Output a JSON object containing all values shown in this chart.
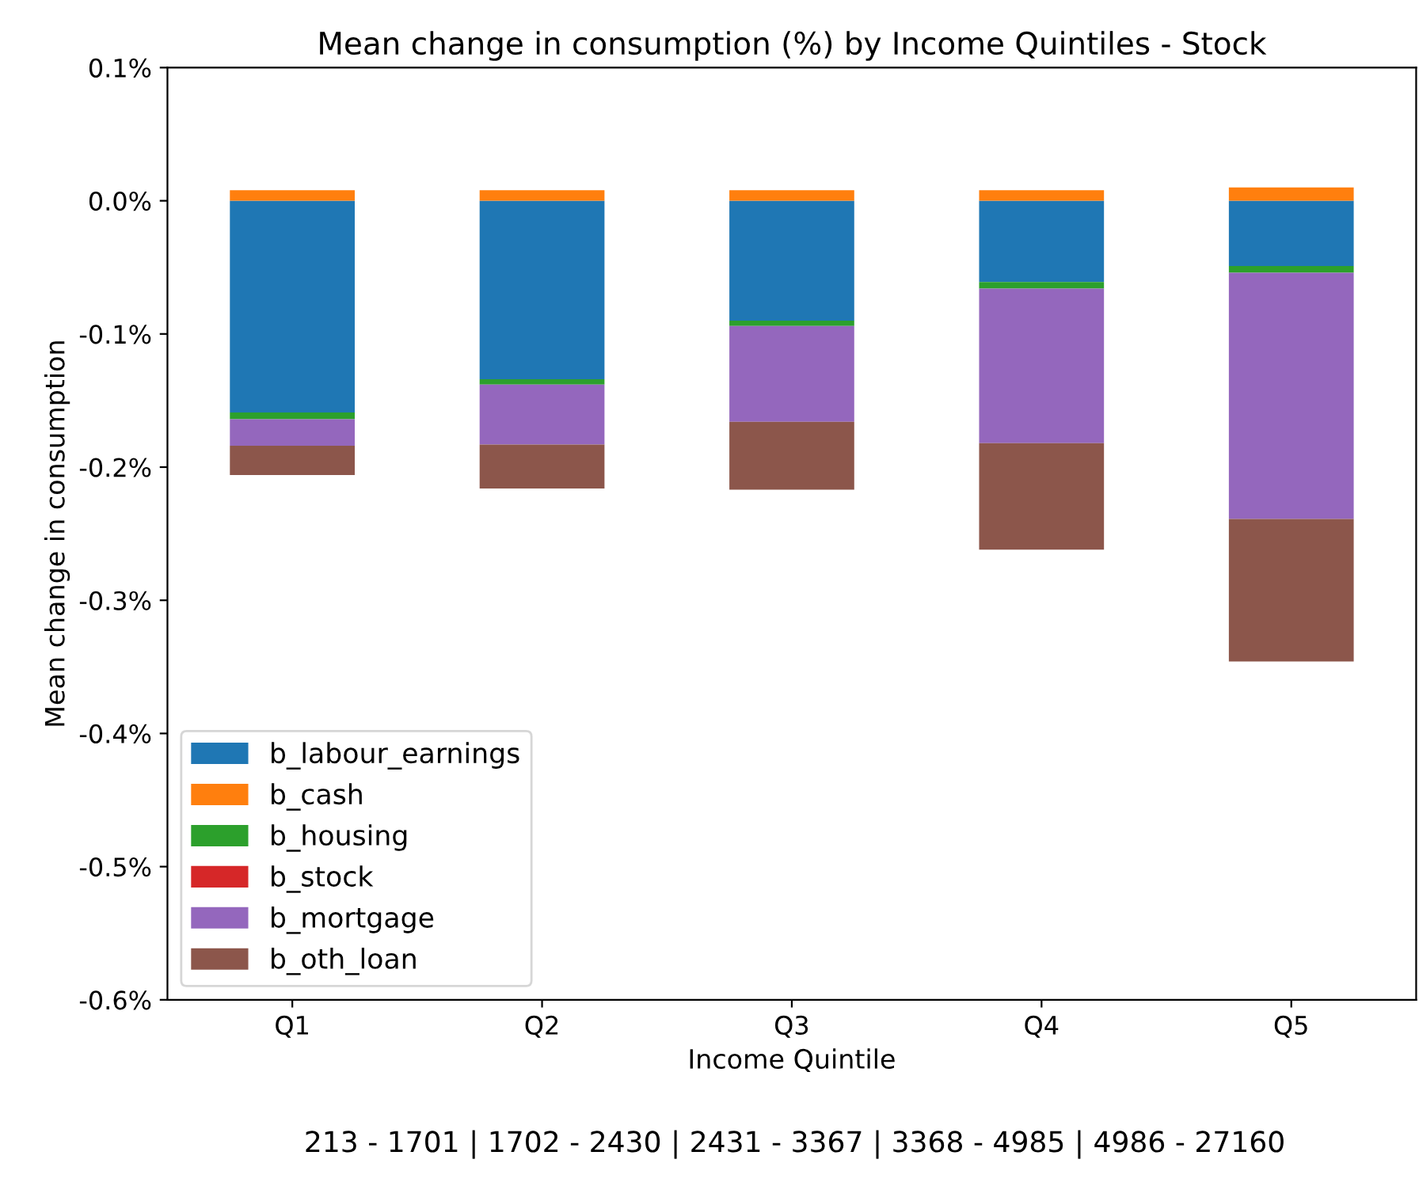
{
  "chart_data": {
    "type": "bar",
    "stacked": true,
    "title": "Mean change in consumption (%) by Income Quintiles - Stock",
    "xlabel": "Income Quintile",
    "ylabel": "Mean change in consumption",
    "categories": [
      "Q1",
      "Q2",
      "Q3",
      "Q4",
      "Q5"
    ],
    "series": [
      {
        "name": "b_labour_earnings",
        "color": "#1f77b4",
        "values": [
          -0.159,
          -0.134,
          -0.09,
          -0.061,
          -0.049
        ]
      },
      {
        "name": "b_cash",
        "color": "#ff7f0e",
        "values": [
          0.008,
          0.008,
          0.008,
          0.008,
          0.01
        ]
      },
      {
        "name": "b_housing",
        "color": "#2ca02c",
        "values": [
          -0.005,
          -0.004,
          -0.004,
          -0.005,
          -0.005
        ]
      },
      {
        "name": "b_stock",
        "color": "#d62728",
        "values": [
          0,
          0,
          0,
          0,
          0
        ]
      },
      {
        "name": "b_mortgage",
        "color": "#9467bd",
        "values": [
          -0.02,
          -0.045,
          -0.072,
          -0.116,
          -0.185
        ]
      },
      {
        "name": "b_oth_loan",
        "color": "#8c564b",
        "values": [
          -0.022,
          -0.033,
          -0.051,
          -0.08,
          -0.107
        ]
      }
    ],
    "ylim": [
      -0.6,
      0.1
    ],
    "yticks": [
      {
        "value": -0.6,
        "label": "-0.6%"
      },
      {
        "value": -0.5,
        "label": "-0.5%"
      },
      {
        "value": -0.4,
        "label": "-0.4%"
      },
      {
        "value": -0.3,
        "label": "-0.3%"
      },
      {
        "value": -0.2,
        "label": "-0.2%"
      },
      {
        "value": -0.1,
        "label": "-0.1%"
      },
      {
        "value": 0.0,
        "label": "0.0%"
      },
      {
        "value": 0.1,
        "label": "0.1%"
      }
    ],
    "legend": "bottom left",
    "grid": false,
    "annotations": [
      "213 - 1701 | 1702 - 2430 | 2431 - 3367 | 3368 - 4985 | 4986 - 27160"
    ]
  }
}
